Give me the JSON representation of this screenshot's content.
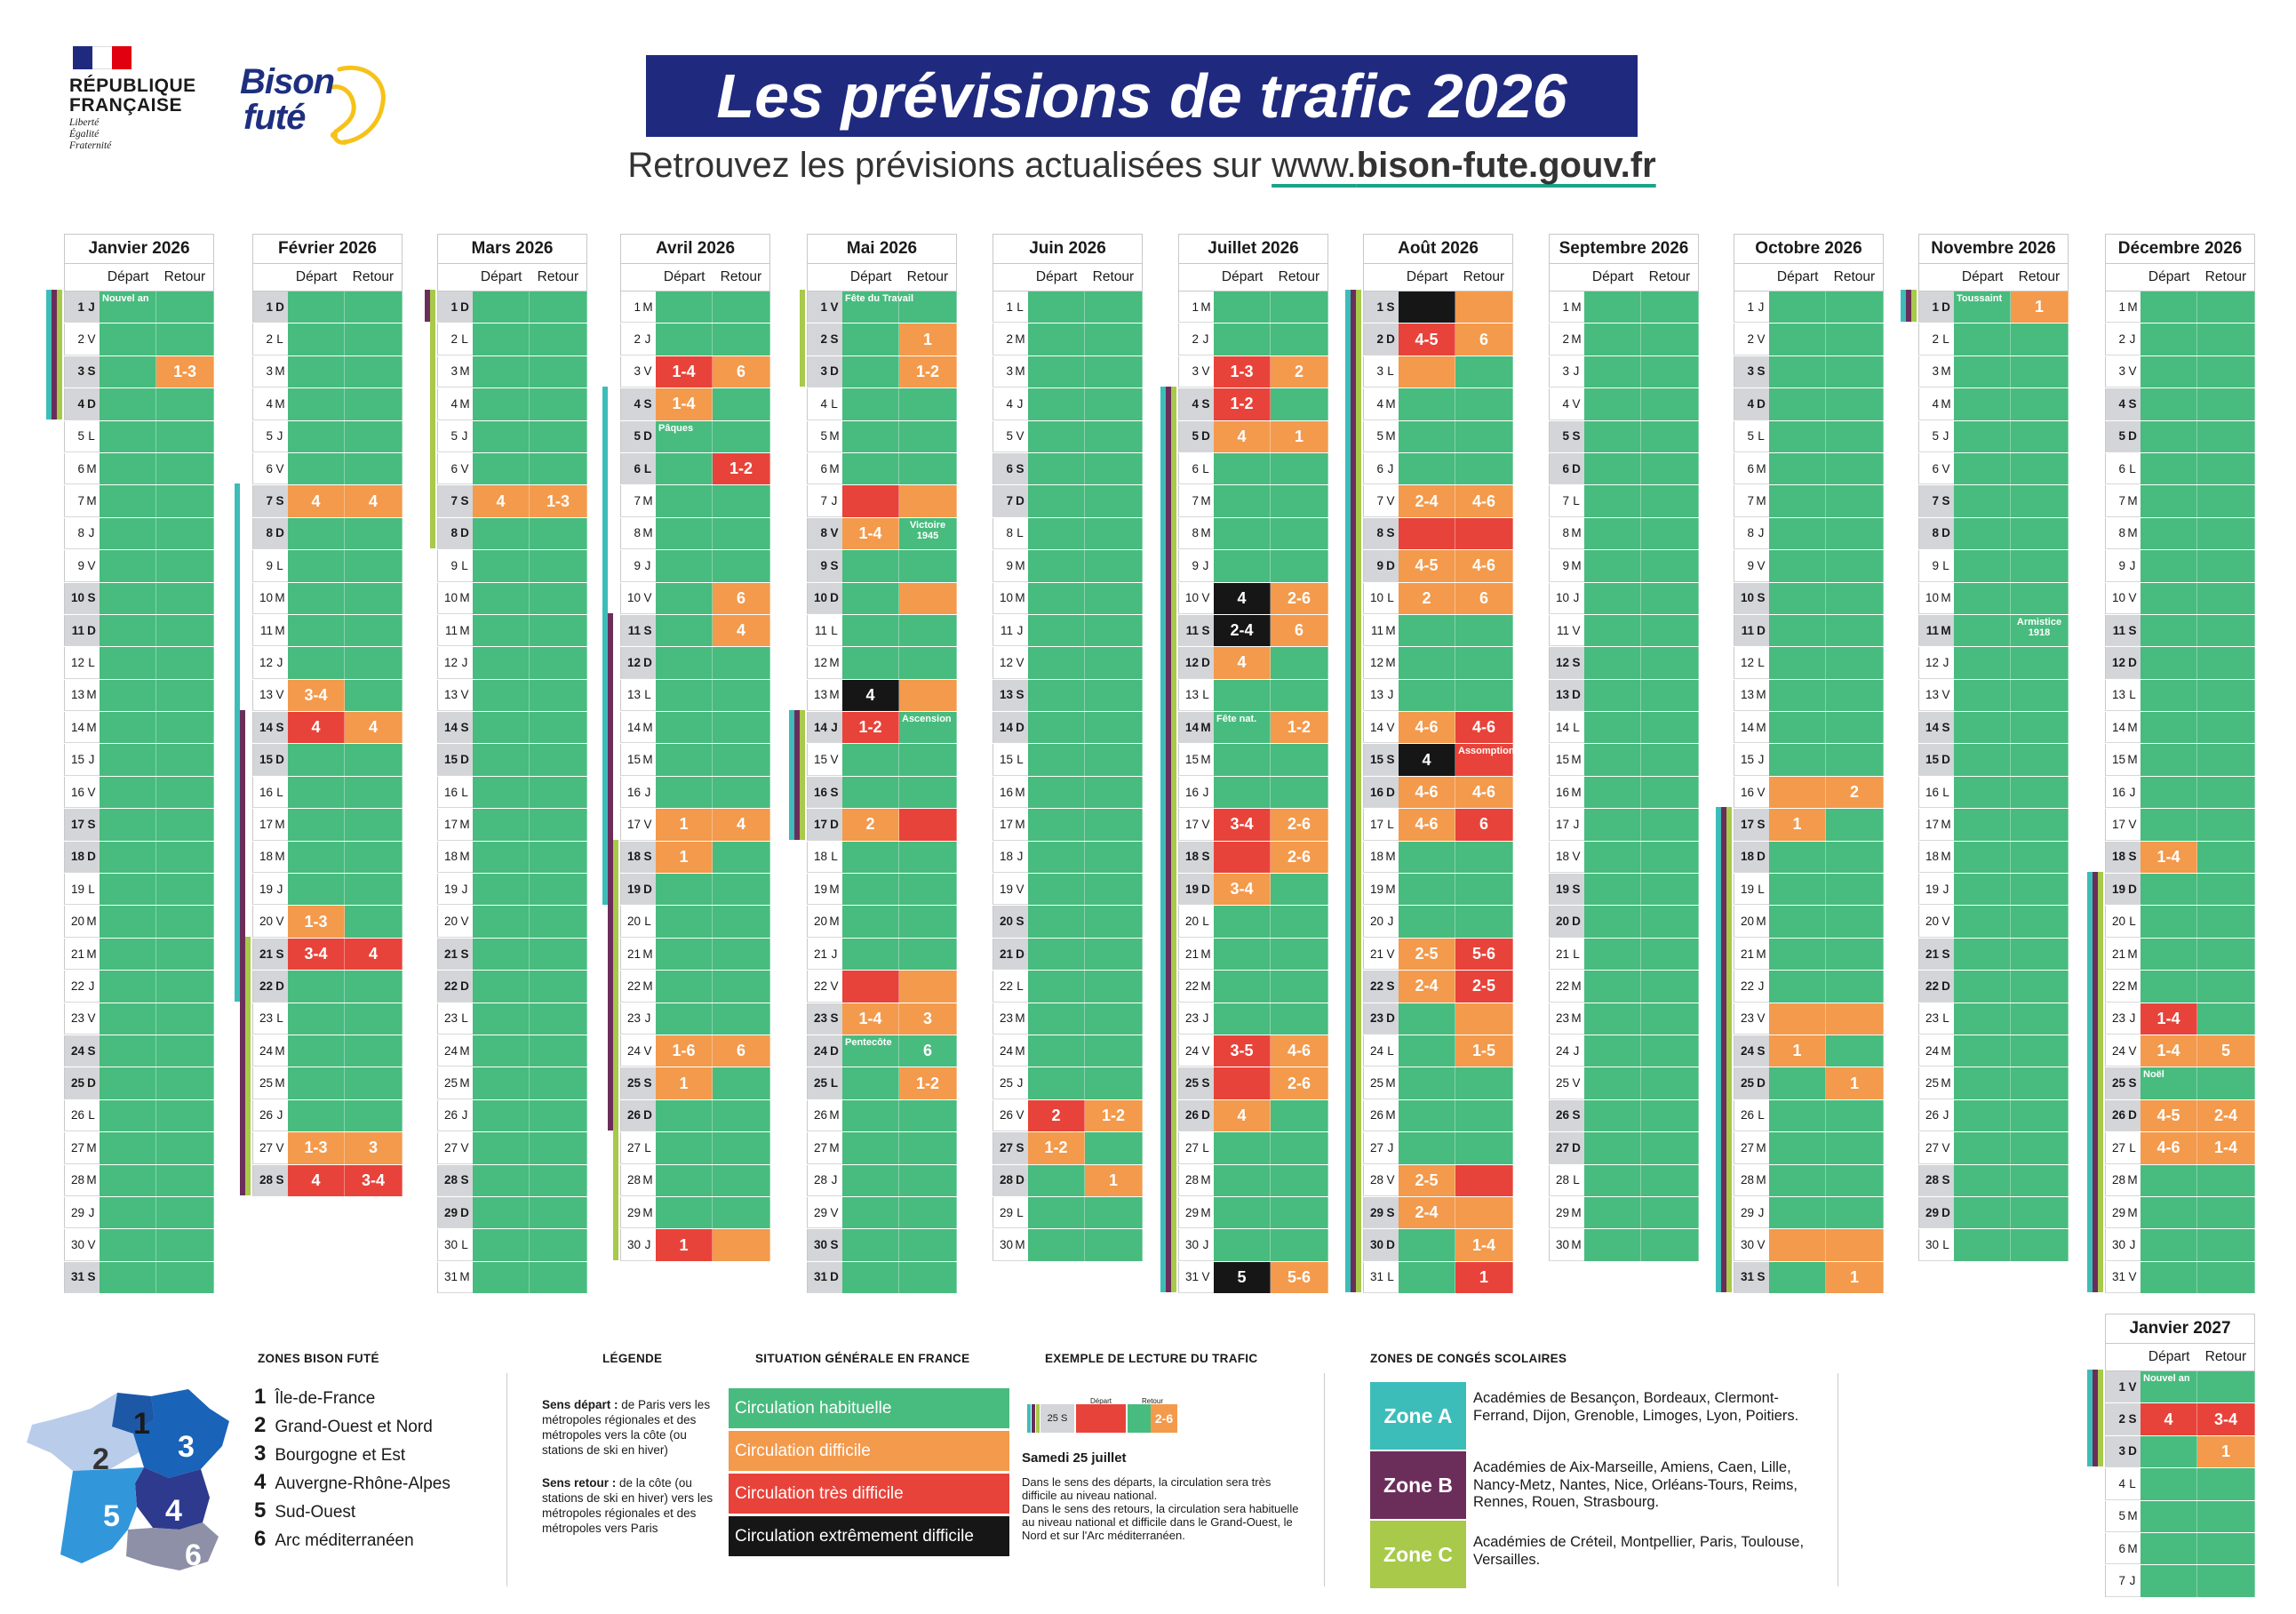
{
  "colors": {
    "green": "#48bb7e",
    "orange": "#f39a4c",
    "red": "#e8433a",
    "black": "#161616",
    "grey": "#d3d5d8",
    "zoneA": "#3dbdb9",
    "zoneB": "#6b2e5a",
    "zoneC": "#a8c94a",
    "navy": "#1f2a7f"
  },
  "header": {
    "rf_title_1": "RÉPUBLIQUE",
    "rf_title_2": "FRANÇAISE",
    "rf_motto_1": "Liberté",
    "rf_motto_2": "Égalité",
    "rf_motto_3": "Fraternité",
    "bison_1": "Bison",
    "bison_2": "futé",
    "title": "Les prévisions de trafic 2026",
    "subtitle_prefix": "Retrouvez les prévisions actualisées sur ",
    "subtitle_url_1": "www.",
    "subtitle_url_2": "bison-fute.gouv.fr"
  },
  "calendar": {
    "depart_label": "Départ",
    "retour_label": "Retour",
    "months": [
      {
        "name": "Janvier 2026",
        "start": "J",
        "days": 31,
        "stripes": [
          [
            "A",
            1,
            4
          ],
          [
            "B",
            1,
            4
          ],
          [
            "C",
            1,
            4
          ]
        ],
        "cells": {
          "3": [
            "",
            "1-3"
          ]
        },
        "colors": {
          "3": [
            "g",
            "o"
          ]
        },
        "notes": {
          "1": [
            "Nouvel an",
            ""
          ]
        },
        "holidays": [
          1
        ]
      },
      {
        "name": "Février 2026",
        "start": "D",
        "days": 28,
        "stripes": [
          [
            "A",
            7,
            22
          ],
          [
            "B",
            14,
            28
          ],
          [
            "C",
            21,
            28
          ]
        ],
        "cells": {
          "7": [
            "4",
            "4"
          ],
          "13": [
            "3-4",
            ""
          ],
          "14": [
            "4",
            "4"
          ],
          "20": [
            "1-3",
            ""
          ],
          "21": [
            "3-4",
            "4"
          ],
          "27": [
            "1-3",
            "3"
          ],
          "28": [
            "4",
            "3-4"
          ]
        },
        "colors": {
          "7": [
            "o",
            "o"
          ],
          "13": [
            "o",
            "g"
          ],
          "14": [
            "r",
            "o"
          ],
          "20": [
            "o",
            "g"
          ],
          "21": [
            "r",
            "r"
          ],
          "27": [
            "o",
            "o"
          ],
          "28": [
            "r",
            "r"
          ]
        }
      },
      {
        "name": "Mars 2026",
        "start": "D",
        "days": 31,
        "stripes": [
          [
            "B",
            1,
            1
          ],
          [
            "C",
            1,
            8
          ]
        ],
        "cells": {
          "7": [
            "4",
            "1-3"
          ]
        },
        "colors": {
          "7": [
            "o",
            "o"
          ]
        }
      },
      {
        "name": "Avril 2026",
        "start": "M",
        "days": 30,
        "stripes": [
          [
            "A",
            4,
            19
          ],
          [
            "B",
            11,
            26
          ],
          [
            "C",
            18,
            30
          ]
        ],
        "cells": {
          "3": [
            "1-4",
            "6"
          ],
          "4": [
            "1-4",
            ""
          ],
          "6": [
            "",
            "1-2"
          ],
          "10": [
            "",
            "6"
          ],
          "11": [
            "",
            "4"
          ],
          "17": [
            "1",
            "4"
          ],
          "18": [
            "1",
            ""
          ],
          "24": [
            "1-6",
            "6"
          ],
          "25": [
            "1",
            ""
          ],
          "30": [
            "1",
            ""
          ]
        },
        "colors": {
          "3": [
            "r",
            "o"
          ],
          "4": [
            "o",
            "g"
          ],
          "6": [
            "g",
            "r"
          ],
          "10": [
            "g",
            "o"
          ],
          "11": [
            "g",
            "o"
          ],
          "17": [
            "o",
            "o"
          ],
          "18": [
            "o",
            "g"
          ],
          "24": [
            "o",
            "o"
          ],
          "25": [
            "o",
            "g"
          ],
          "30": [
            "r",
            "o"
          ]
        },
        "notes": {
          "5": [
            "Pâques",
            ""
          ]
        },
        "holidays": [
          5,
          6
        ]
      },
      {
        "name": "Mai 2026",
        "start": "V",
        "days": 31,
        "stripes": [
          [
            "C",
            1,
            3
          ],
          [
            "A",
            14,
            17
          ],
          [
            "B",
            14,
            17
          ],
          [
            "C",
            14,
            17
          ]
        ],
        "cells": {
          "2": [
            "",
            "1"
          ],
          "3": [
            "",
            "1-2"
          ],
          "8": [
            "1-4",
            ""
          ],
          "13": [
            "4",
            ""
          ],
          "14": [
            "1-2",
            ""
          ],
          "17": [
            "2",
            ""
          ],
          "23": [
            "1-4",
            "3"
          ],
          "24": [
            "",
            "6"
          ],
          "25": [
            "",
            "1-2"
          ]
        },
        "colors": {
          "2": [
            "g",
            "o"
          ],
          "3": [
            "g",
            "o"
          ],
          "7": [
            "r",
            "o"
          ],
          "8": [
            "o",
            "g"
          ],
          "10": [
            "g",
            "o"
          ],
          "13": [
            "k",
            "o"
          ],
          "14": [
            "r",
            "g"
          ],
          "17": [
            "o",
            "r"
          ],
          "22": [
            "r",
            "o"
          ],
          "23": [
            "o",
            "o"
          ],
          "24": [
            "g",
            "g"
          ],
          "25": [
            "g",
            "o"
          ]
        },
        "notes": {
          "1": [
            "Fête du Travail",
            ""
          ],
          "8": [
            "",
            "Victoire 1945"
          ],
          "14": [
            "",
            "Ascension"
          ],
          "24": [
            "Pentecôte",
            ""
          ]
        },
        "holidays": [
          1,
          8,
          14,
          24,
          25
        ]
      },
      {
        "name": "Juin 2026",
        "start": "L",
        "days": 30,
        "stripes": [],
        "cells": {
          "26": [
            "2",
            "1-2"
          ],
          "27": [
            "1-2",
            ""
          ],
          "28": [
            "",
            "1"
          ]
        },
        "colors": {
          "26": [
            "r",
            "o"
          ],
          "27": [
            "o",
            "g"
          ],
          "28": [
            "g",
            "o"
          ]
        }
      },
      {
        "name": "Juillet 2026",
        "start": "M",
        "days": 31,
        "stripes": [
          [
            "A",
            4,
            31
          ],
          [
            "B",
            4,
            31
          ],
          [
            "C",
            4,
            31
          ]
        ],
        "cells": {
          "3": [
            "1-3",
            "2"
          ],
          "4": [
            "1-2",
            ""
          ],
          "5": [
            "4",
            "1"
          ],
          "10": [
            "4",
            "2-6"
          ],
          "11": [
            "2-4",
            "6"
          ],
          "12": [
            "4",
            ""
          ],
          "14": [
            "",
            "1-2"
          ],
          "17": [
            "3-4",
            "2-6"
          ],
          "18": [
            "",
            "2-6"
          ],
          "19": [
            "3-4",
            ""
          ],
          "24": [
            "3-5",
            "4-6"
          ],
          "25": [
            "",
            "2-6"
          ],
          "26": [
            "4",
            ""
          ],
          "31": [
            "5",
            "5-6"
          ]
        },
        "colors": {
          "3": [
            "r",
            "o"
          ],
          "4": [
            "r",
            "g"
          ],
          "5": [
            "o",
            "o"
          ],
          "10": [
            "k",
            "o"
          ],
          "11": [
            "k",
            "o"
          ],
          "12": [
            "o",
            "g"
          ],
          "14": [
            "g",
            "o"
          ],
          "17": [
            "r",
            "o"
          ],
          "18": [
            "r",
            "o"
          ],
          "19": [
            "o",
            "g"
          ],
          "24": [
            "r",
            "o"
          ],
          "25": [
            "r",
            "o"
          ],
          "26": [
            "o",
            "g"
          ],
          "31": [
            "k",
            "o"
          ]
        },
        "notes": {
          "14": [
            "Fête nat.",
            ""
          ]
        },
        "holidays": [
          14
        ]
      },
      {
        "name": "Août 2026",
        "start": "S",
        "days": 31,
        "stripes": [
          [
            "A",
            1,
            31
          ],
          [
            "B",
            1,
            31
          ],
          [
            "C",
            1,
            31
          ]
        ],
        "cells": {
          "2": [
            "4-5",
            "6"
          ],
          "7": [
            "2-4",
            "4-6"
          ],
          "9": [
            "4-5",
            "4-6"
          ],
          "10": [
            "2",
            "6"
          ],
          "14": [
            "4-6",
            "4-6"
          ],
          "15": [
            "4",
            ""
          ],
          "16": [
            "4-6",
            "4-6"
          ],
          "17": [
            "4-6",
            "6"
          ],
          "21": [
            "2-5",
            "5-6"
          ],
          "22": [
            "2-4",
            "2-5"
          ],
          "24": [
            "",
            "1-5"
          ],
          "28": [
            "2-5",
            ""
          ],
          "29": [
            "2-4",
            ""
          ],
          "30": [
            "",
            "1-4"
          ],
          "31": [
            "",
            "1"
          ]
        },
        "colors": {
          "1": [
            "k",
            "o"
          ],
          "2": [
            "r",
            "o"
          ],
          "3": [
            "o",
            "g"
          ],
          "7": [
            "o",
            "o"
          ],
          "8": [
            "r",
            "r"
          ],
          "9": [
            "o",
            "o"
          ],
          "10": [
            "o",
            "o"
          ],
          "14": [
            "o",
            "r"
          ],
          "15": [
            "k",
            "r"
          ],
          "16": [
            "o",
            "o"
          ],
          "17": [
            "o",
            "r"
          ],
          "21": [
            "o",
            "r"
          ],
          "22": [
            "o",
            "r"
          ],
          "23": [
            "g",
            "o"
          ],
          "24": [
            "g",
            "o"
          ],
          "28": [
            "o",
            "r"
          ],
          "29": [
            "o",
            "o"
          ],
          "30": [
            "g",
            "o"
          ],
          "31": [
            "g",
            "r"
          ]
        },
        "notes": {
          "15": [
            "",
            "Assomption"
          ]
        },
        "holidays": [
          15
        ]
      },
      {
        "name": "Septembre 2026",
        "start": "M",
        "days": 30,
        "stripes": [],
        "cells": {},
        "colors": {}
      },
      {
        "name": "Octobre 2026",
        "start": "J",
        "days": 31,
        "stripes": [
          [
            "A",
            17,
            31
          ],
          [
            "B",
            17,
            31
          ],
          [
            "C",
            17,
            31
          ]
        ],
        "cells": {
          "16": [
            "",
            "2"
          ],
          "17": [
            "1",
            ""
          ],
          "24": [
            "1",
            ""
          ],
          "25": [
            "",
            "1"
          ],
          "31": [
            "",
            "1"
          ]
        },
        "colors": {
          "16": [
            "o",
            "o"
          ],
          "17": [
            "o",
            "g"
          ],
          "23": [
            "o",
            "o"
          ],
          "24": [
            "o",
            "g"
          ],
          "25": [
            "g",
            "o"
          ],
          "30": [
            "o",
            "o"
          ],
          "31": [
            "g",
            "o"
          ]
        }
      },
      {
        "name": "Novembre 2026",
        "start": "D",
        "days": 30,
        "stripes": [
          [
            "A",
            1,
            1
          ],
          [
            "B",
            1,
            1
          ],
          [
            "C",
            1,
            1
          ]
        ],
        "cells": {
          "1": [
            "",
            "1"
          ]
        },
        "colors": {
          "1": [
            "g",
            "o"
          ]
        },
        "notes": {
          "1": [
            "Toussaint",
            ""
          ],
          "11": [
            "",
            "Armistice 1918"
          ]
        },
        "holidays": [
          1,
          11
        ]
      },
      {
        "name": "Décembre 2026",
        "start": "M",
        "days": 31,
        "stripes": [
          [
            "A",
            19,
            31
          ],
          [
            "B",
            19,
            31
          ],
          [
            "C",
            19,
            31
          ]
        ],
        "cells": {
          "18": [
            "1-4",
            ""
          ],
          "23": [
            "1-4",
            ""
          ],
          "24": [
            "1-4",
            "5"
          ],
          "26": [
            "4-5",
            "2-4"
          ],
          "27": [
            "4-6",
            "1-4"
          ]
        },
        "colors": {
          "18": [
            "o",
            "g"
          ],
          "23": [
            "r",
            "g"
          ],
          "24": [
            "o",
            "o"
          ],
          "26": [
            "o",
            "o"
          ],
          "27": [
            "o",
            "o"
          ]
        },
        "notes": {
          "25": [
            "Noël",
            ""
          ]
        },
        "holidays": [
          25
        ]
      },
      {
        "name": "Janvier 2027",
        "start": "V",
        "days": 7,
        "stripes": [
          [
            "A",
            1,
            3
          ],
          [
            "B",
            1,
            3
          ],
          [
            "C",
            1,
            3
          ]
        ],
        "cells": {
          "2": [
            "4",
            "3-4"
          ],
          "3": [
            "",
            "1"
          ]
        },
        "colors": {
          "2": [
            "r",
            "r"
          ],
          "3": [
            "g",
            "o"
          ]
        },
        "notes": {
          "1": [
            "Nouvel an",
            ""
          ]
        },
        "holidays": [
          1
        ]
      }
    ]
  },
  "legend": {
    "zones_title": "ZONES BISON FUTÉ",
    "zones": [
      {
        "n": "1",
        "name": "Île-de-France"
      },
      {
        "n": "2",
        "name": "Grand-Ouest et Nord"
      },
      {
        "n": "3",
        "name": "Bourgogne et Est"
      },
      {
        "n": "4",
        "name": "Auvergne-Rhône-Alpes"
      },
      {
        "n": "5",
        "name": "Sud-Ouest"
      },
      {
        "n": "6",
        "name": "Arc méditerranéen"
      }
    ],
    "legende_title": "LÉGENDE",
    "sens_depart_label": "Sens départ :",
    "sens_depart_text": " de Paris vers les métropoles régionales et des métropoles vers la côte (ou stations de ski en hiver)",
    "sens_retour_label": "Sens retour :",
    "sens_retour_text": " de la côte (ou stations de ski en hiver) vers les métropoles régionales et des métropoles vers Paris",
    "situation_title": "SITUATION GÉNÉRALE EN FRANCE",
    "situations": [
      "Circulation habituelle",
      "Circulation difficile",
      "Circulation très difficile",
      "Circulation extrêmement difficile"
    ],
    "exemple_title": "EXEMPLE DE LECTURE DU TRAFIC",
    "exemple_row": "25 S",
    "exemple_value": "2-6",
    "exemple_date": "Samedi 25 juillet",
    "exemple_text_1": "Dans le sens des départs, la circulation sera très difficile au niveau national.",
    "exemple_text_2": "Dans le sens des retours, la circulation sera habituelle au niveau national et difficile dans le Grand-Ouest, le Nord et sur l'Arc méditerranéen.",
    "conges_title": "ZONES DE CONGÉS SCOLAIRES",
    "zone_a": "Zone A",
    "zone_a_text": "Académies de Besançon, Bordeaux, Clermont-Ferrand, Dijon, Grenoble, Limoges, Lyon, Poitiers.",
    "zone_b": "Zone B",
    "zone_b_text": "Académies de Aix-Marseille, Amiens, Caen, Lille, Nancy-Metz, Nantes, Nice, Orléans-Tours, Reims, Rennes, Rouen, Strasbourg.",
    "zone_c": "Zone C",
    "zone_c_text": "Académies de Créteil, Montpellier, Paris, Toulouse, Versailles."
  }
}
